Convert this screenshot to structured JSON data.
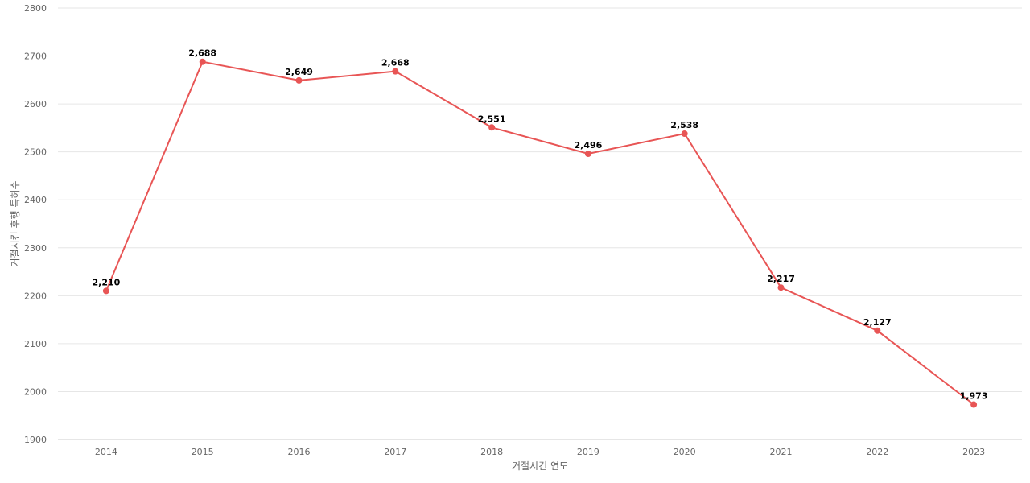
{
  "chart_data": {
    "type": "line",
    "title": "",
    "xlabel": "거절시킨 연도",
    "ylabel": "거절시킨 후행 특허수",
    "categories": [
      "2014",
      "2015",
      "2016",
      "2017",
      "2018",
      "2019",
      "2020",
      "2021",
      "2022",
      "2023"
    ],
    "series": [
      {
        "values": [
          2210,
          2688,
          2649,
          2668,
          2551,
          2496,
          2538,
          2217,
          2127,
          1973
        ],
        "data_labels": [
          "2,210",
          "2,688",
          "2,649",
          "2,668",
          "2,551",
          "2,496",
          "2,538",
          "2,217",
          "2,127",
          "1,973"
        ],
        "color": "#e85555"
      }
    ],
    "ylim": [
      1900,
      2800
    ],
    "yticks": [
      "1900",
      "2000",
      "2100",
      "2200",
      "2300",
      "2400",
      "2500",
      "2600",
      "2700",
      "2800"
    ],
    "grid": true,
    "legend": "none"
  }
}
